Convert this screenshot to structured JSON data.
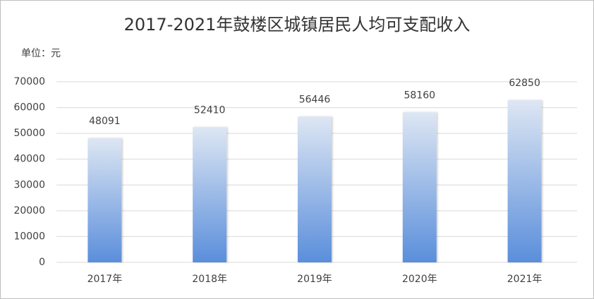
{
  "chart_data": {
    "type": "bar",
    "title": "2017-2021年鼓楼区城镇居民人均可支配收入",
    "unit_label": "单位：元",
    "categories": [
      "2017年",
      "2018年",
      "2019年",
      "2020年",
      "2021年"
    ],
    "values": [
      48091,
      52410,
      56446,
      58160,
      62850
    ],
    "colors": [
      "#dde6f3",
      "#5a8edb"
    ],
    "ylim": [
      0,
      70000
    ],
    "yticks": [
      0,
      10000,
      20000,
      30000,
      40000,
      50000,
      60000,
      70000
    ],
    "grid": true
  }
}
